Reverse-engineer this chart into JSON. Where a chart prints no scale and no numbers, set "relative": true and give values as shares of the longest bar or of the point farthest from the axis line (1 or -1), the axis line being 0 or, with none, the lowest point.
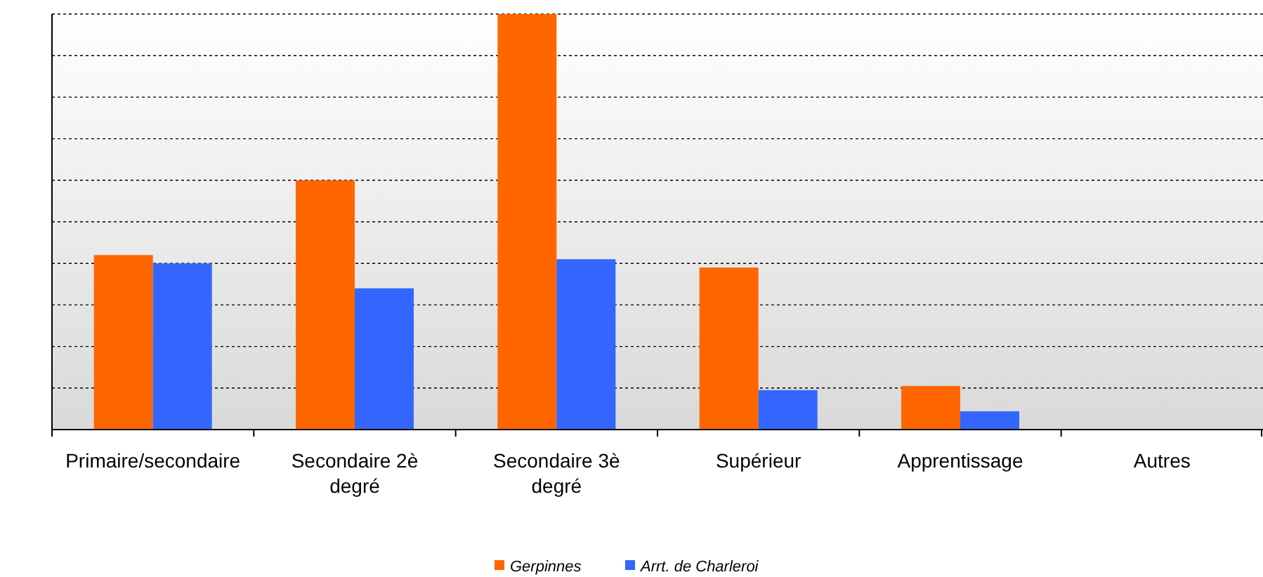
{
  "chart_data": {
    "type": "bar",
    "relative": true,
    "categories": [
      "Primaire/secondaire",
      "Secondaire 2è degré",
      "Secondaire 3è degré",
      "Supérieur",
      "Apprentissage",
      "Autres"
    ],
    "series": [
      {
        "name": "Gerpinnes",
        "color": "#ff6600",
        "values": [
          0.42,
          0.6,
          1,
          0.39,
          0.105,
          0
        ]
      },
      {
        "name": "Arrt. de Charleroi",
        "color": "#3366ff",
        "values": [
          0.4,
          0.34,
          0.41,
          0.095,
          0.044,
          0
        ]
      }
    ],
    "grid": "y",
    "legend": "bottom"
  }
}
